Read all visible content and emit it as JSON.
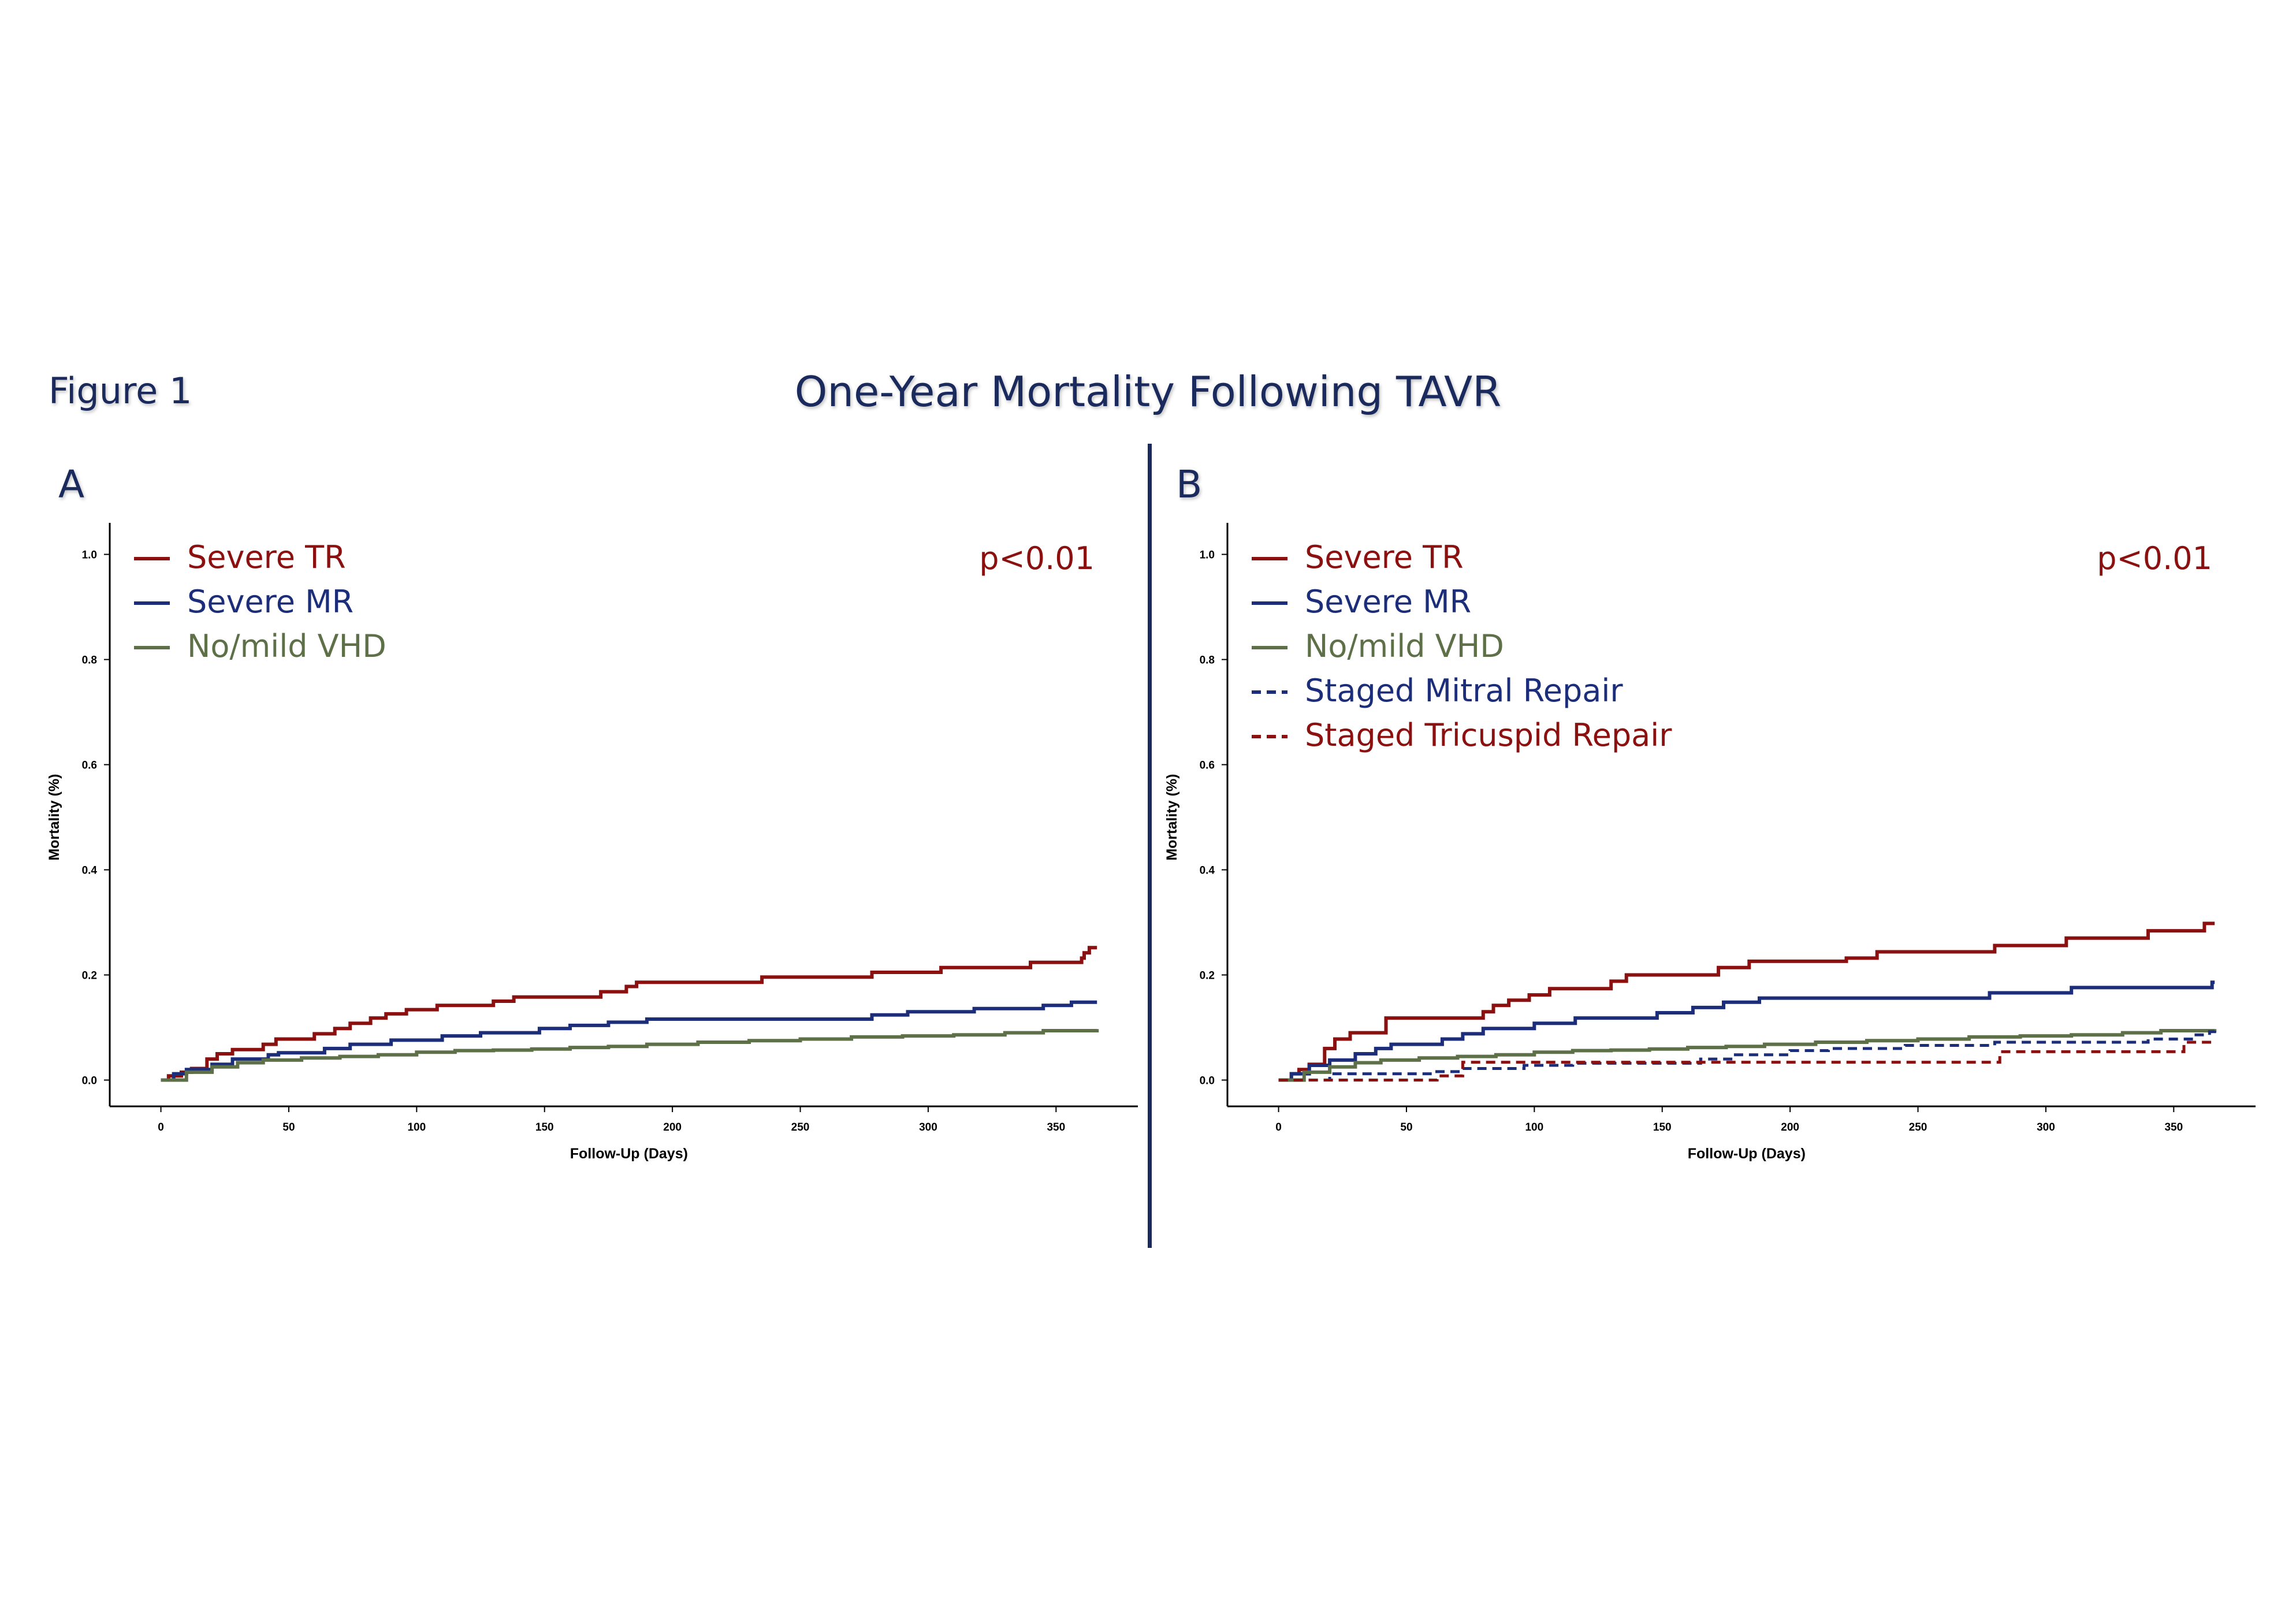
{
  "figure_label": "Figure 1",
  "title": "One-Year Mortality Following TAVR",
  "colors": {
    "severe_tr": "#8b1010",
    "severe_mr": "#1c2e7a",
    "no_mild_vhd": "#5e7048",
    "title": "#1b2a5c"
  },
  "chart_data": [
    {
      "panel": "A",
      "type": "line",
      "step": true,
      "xlabel": "Follow-Up (Days)",
      "ylabel": "Mortality (%)",
      "xlim": [
        -20,
        382
      ],
      "ylim": [
        -0.05,
        1.06
      ],
      "xticks": [
        "0",
        "50",
        "100",
        "150",
        "200",
        "250",
        "300",
        "350"
      ],
      "yticks": [
        "0.0",
        "0.2",
        "0.4",
        "0.6",
        "0.8",
        "1.0"
      ],
      "annotation": "p<0.01",
      "legend_position": "top-left",
      "series": [
        {
          "name": "Severe TR",
          "color": "#8b1010",
          "dashed": false,
          "points": [
            [
              0,
              0.0
            ],
            [
              3,
              0.008
            ],
            [
              8,
              0.015
            ],
            [
              12,
              0.022
            ],
            [
              18,
              0.04
            ],
            [
              22,
              0.05
            ],
            [
              28,
              0.058
            ],
            [
              40,
              0.068
            ],
            [
              45,
              0.078
            ],
            [
              60,
              0.088
            ],
            [
              68,
              0.098
            ],
            [
              74,
              0.108
            ],
            [
              82,
              0.118
            ],
            [
              88,
              0.126
            ],
            [
              96,
              0.134
            ],
            [
              108,
              0.142
            ],
            [
              130,
              0.15
            ],
            [
              138,
              0.158
            ],
            [
              172,
              0.168
            ],
            [
              182,
              0.178
            ],
            [
              186,
              0.186
            ],
            [
              235,
              0.196
            ],
            [
              278,
              0.205
            ],
            [
              305,
              0.214
            ],
            [
              340,
              0.224
            ],
            [
              360,
              0.232
            ],
            [
              361,
              0.242
            ],
            [
              363,
              0.252
            ],
            [
              366,
              0.252
            ]
          ]
        },
        {
          "name": "Severe MR",
          "color": "#1c2e7a",
          "dashed": false,
          "points": [
            [
              0,
              0.0
            ],
            [
              5,
              0.012
            ],
            [
              10,
              0.02
            ],
            [
              20,
              0.03
            ],
            [
              28,
              0.04
            ],
            [
              42,
              0.048
            ],
            [
              46,
              0.052
            ],
            [
              64,
              0.06
            ],
            [
              74,
              0.068
            ],
            [
              90,
              0.076
            ],
            [
              110,
              0.084
            ],
            [
              125,
              0.09
            ],
            [
              148,
              0.098
            ],
            [
              160,
              0.104
            ],
            [
              175,
              0.11
            ],
            [
              190,
              0.116
            ],
            [
              240,
              0.116
            ],
            [
              278,
              0.124
            ],
            [
              292,
              0.13
            ],
            [
              318,
              0.136
            ],
            [
              345,
              0.142
            ],
            [
              356,
              0.148
            ],
            [
              366,
              0.148
            ]
          ]
        },
        {
          "name": "No/mild VHD",
          "color": "#5e7048",
          "dashed": false,
          "points": [
            [
              0,
              0.0
            ],
            [
              10,
              0.015
            ],
            [
              20,
              0.025
            ],
            [
              30,
              0.033
            ],
            [
              40,
              0.038
            ],
            [
              55,
              0.042
            ],
            [
              70,
              0.045
            ],
            [
              85,
              0.048
            ],
            [
              100,
              0.053
            ],
            [
              115,
              0.056
            ],
            [
              130,
              0.057
            ],
            [
              145,
              0.059
            ],
            [
              160,
              0.062
            ],
            [
              175,
              0.064
            ],
            [
              190,
              0.068
            ],
            [
              210,
              0.072
            ],
            [
              230,
              0.075
            ],
            [
              250,
              0.078
            ],
            [
              270,
              0.082
            ],
            [
              290,
              0.084
            ],
            [
              310,
              0.086
            ],
            [
              330,
              0.09
            ],
            [
              345,
              0.094
            ],
            [
              366,
              0.097
            ]
          ]
        }
      ]
    },
    {
      "panel": "B",
      "type": "line",
      "step": true,
      "xlabel": "Follow-Up (Days)",
      "ylabel": "Mortality (%)",
      "xlim": [
        -20,
        382
      ],
      "ylim": [
        -0.05,
        1.06
      ],
      "xticks": [
        "0",
        "50",
        "100",
        "150",
        "200",
        "250",
        "300",
        "350"
      ],
      "yticks": [
        "0.0",
        "0.2",
        "0.4",
        "0.6",
        "0.8",
        "1.0"
      ],
      "annotation": "p<0.01",
      "legend_position": "top-left",
      "series": [
        {
          "name": "Severe TR",
          "color": "#8b1010",
          "dashed": false,
          "points": [
            [
              0,
              0.0
            ],
            [
              5,
              0.012
            ],
            [
              8,
              0.02
            ],
            [
              12,
              0.03
            ],
            [
              18,
              0.06
            ],
            [
              22,
              0.078
            ],
            [
              28,
              0.09
            ],
            [
              42,
              0.118
            ],
            [
              80,
              0.13
            ],
            [
              84,
              0.142
            ],
            [
              90,
              0.152
            ],
            [
              98,
              0.162
            ],
            [
              106,
              0.174
            ],
            [
              130,
              0.188
            ],
            [
              136,
              0.2
            ],
            [
              172,
              0.214
            ],
            [
              184,
              0.226
            ],
            [
              222,
              0.232
            ],
            [
              234,
              0.244
            ],
            [
              280,
              0.256
            ],
            [
              308,
              0.27
            ],
            [
              340,
              0.284
            ],
            [
              362,
              0.298
            ],
            [
              366,
              0.298
            ]
          ]
        },
        {
          "name": "Severe MR",
          "color": "#1c2e7a",
          "dashed": false,
          "points": [
            [
              0,
              0.0
            ],
            [
              5,
              0.012
            ],
            [
              12,
              0.028
            ],
            [
              20,
              0.038
            ],
            [
              30,
              0.05
            ],
            [
              38,
              0.06
            ],
            [
              44,
              0.068
            ],
            [
              64,
              0.078
            ],
            [
              72,
              0.088
            ],
            [
              80,
              0.098
            ],
            [
              100,
              0.108
            ],
            [
              116,
              0.118
            ],
            [
              148,
              0.128
            ],
            [
              162,
              0.138
            ],
            [
              174,
              0.148
            ],
            [
              188,
              0.156
            ],
            [
              278,
              0.166
            ],
            [
              310,
              0.176
            ],
            [
              365,
              0.186
            ],
            [
              366,
              0.186
            ]
          ]
        },
        {
          "name": "No/mild VHD",
          "color": "#5e7048",
          "dashed": false,
          "points": [
            [
              0,
              0.0
            ],
            [
              10,
              0.015
            ],
            [
              20,
              0.025
            ],
            [
              30,
              0.033
            ],
            [
              40,
              0.038
            ],
            [
              55,
              0.042
            ],
            [
              70,
              0.045
            ],
            [
              85,
              0.048
            ],
            [
              100,
              0.053
            ],
            [
              115,
              0.056
            ],
            [
              130,
              0.057
            ],
            [
              145,
              0.059
            ],
            [
              160,
              0.062
            ],
            [
              175,
              0.064
            ],
            [
              190,
              0.068
            ],
            [
              210,
              0.072
            ],
            [
              230,
              0.075
            ],
            [
              250,
              0.078
            ],
            [
              270,
              0.082
            ],
            [
              290,
              0.084
            ],
            [
              310,
              0.086
            ],
            [
              330,
              0.09
            ],
            [
              345,
              0.094
            ],
            [
              366,
              0.097
            ]
          ]
        },
        {
          "name": "Staged Mitral Repair",
          "color": "#1c2e7a",
          "dashed": true,
          "points": [
            [
              0,
              0.0
            ],
            [
              20,
              0.012
            ],
            [
              60,
              0.016
            ],
            [
              72,
              0.022
            ],
            [
              96,
              0.028
            ],
            [
              115,
              0.032
            ],
            [
              165,
              0.04
            ],
            [
              178,
              0.048
            ],
            [
              200,
              0.056
            ],
            [
              215,
              0.06
            ],
            [
              245,
              0.066
            ],
            [
              280,
              0.072
            ],
            [
              340,
              0.078
            ],
            [
              358,
              0.086
            ],
            [
              364,
              0.092
            ],
            [
              366,
              0.1
            ]
          ]
        },
        {
          "name": "Staged Tricuspid Repair",
          "color": "#8b1010",
          "dashed": true,
          "points": [
            [
              0,
              0.0
            ],
            [
              20,
              0.0
            ],
            [
              60,
              0.0
            ],
            [
              62,
              0.008
            ],
            [
              72,
              0.034
            ],
            [
              280,
              0.034
            ],
            [
              282,
              0.054
            ],
            [
              352,
              0.054
            ],
            [
              354,
              0.072
            ],
            [
              366,
              0.072
            ]
          ]
        }
      ]
    }
  ]
}
